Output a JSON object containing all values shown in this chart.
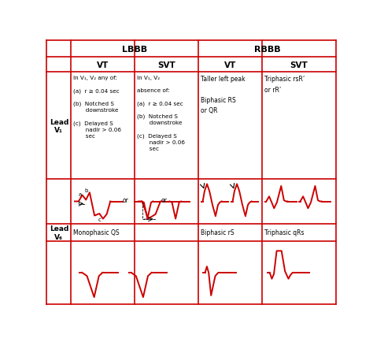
{
  "bg_color": "#ffffff",
  "grid_color": "#cc0000",
  "text_color": "#000000",
  "ecg_color": "#cc0000",
  "lbbb_vt_text": "In V₁, V₂ any of:\n\n(a)  r ≥ 0.04 sec\n\n(b)  Notched S\n       downstroke\n\n(c)  Delayed S\n       nadir > 0.06\n       sec",
  "lbbb_svt_text": "In V₁, V₂\n\nabsence of:\n\n(a)  r ≥ 0.04 sec\n\n(b)  Notched S\n       downstroke\n\n(c)  Delayed S\n       nadir > 0.06\n       sec",
  "rbbb_vt_text": "Taller left peak\n\nBiphasic RS\nor QR",
  "rbbb_svt_text": "Triphasic rsR’\nor rR’",
  "lbbb_vt_v6_text": "Monophasic QS",
  "rbbb_vt_v6_text": "Biphasic rS",
  "rbbb_svt_v6_text": "Triphasic qRs",
  "cols": [
    0.0,
    0.085,
    0.305,
    0.525,
    0.745,
    1.0
  ],
  "rows": [
    1.0,
    0.938,
    0.88,
    0.475,
    0.305,
    0.24,
    0.0
  ]
}
